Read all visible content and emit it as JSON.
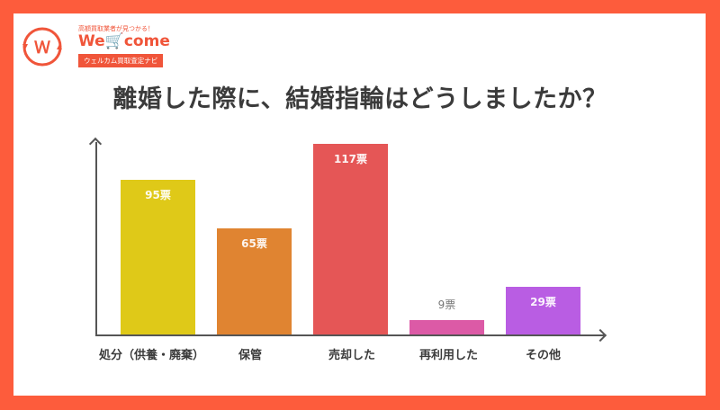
{
  "logo": {
    "tagline": "高額買取業者が見つかる！",
    "wordmark_left": "We",
    "wordmark_cart": "🛒",
    "wordmark_right": "come",
    "badge": "ウェルカム買取査定ナビ",
    "brand_color": "#f0553a"
  },
  "title": "離婚した際に、結婚指輪はどうしましたか？",
  "chart_data": {
    "type": "bar",
    "title": "離婚した際に、結婚指輪はどうしましたか？",
    "categories": [
      "処分（供養・廃棄）",
      "保管",
      "売却した",
      "再利用した",
      "その他"
    ],
    "values": [
      95,
      65,
      117,
      9,
      29
    ],
    "value_labels": [
      "95票",
      "65票",
      "117票",
      "9票",
      "29票"
    ],
    "colors": [
      "#dfc918",
      "#e08431",
      "#e55656",
      "#dc5aa6",
      "#b95de3"
    ],
    "unit": "票",
    "xlabel": "",
    "ylabel": "",
    "ylim": [
      0,
      125
    ],
    "grid": false,
    "legend": "none"
  },
  "colors": {
    "frame": "#fd5c3c",
    "card": "#ffffff",
    "axis": "#555555",
    "text": "#3b3b3b"
  }
}
